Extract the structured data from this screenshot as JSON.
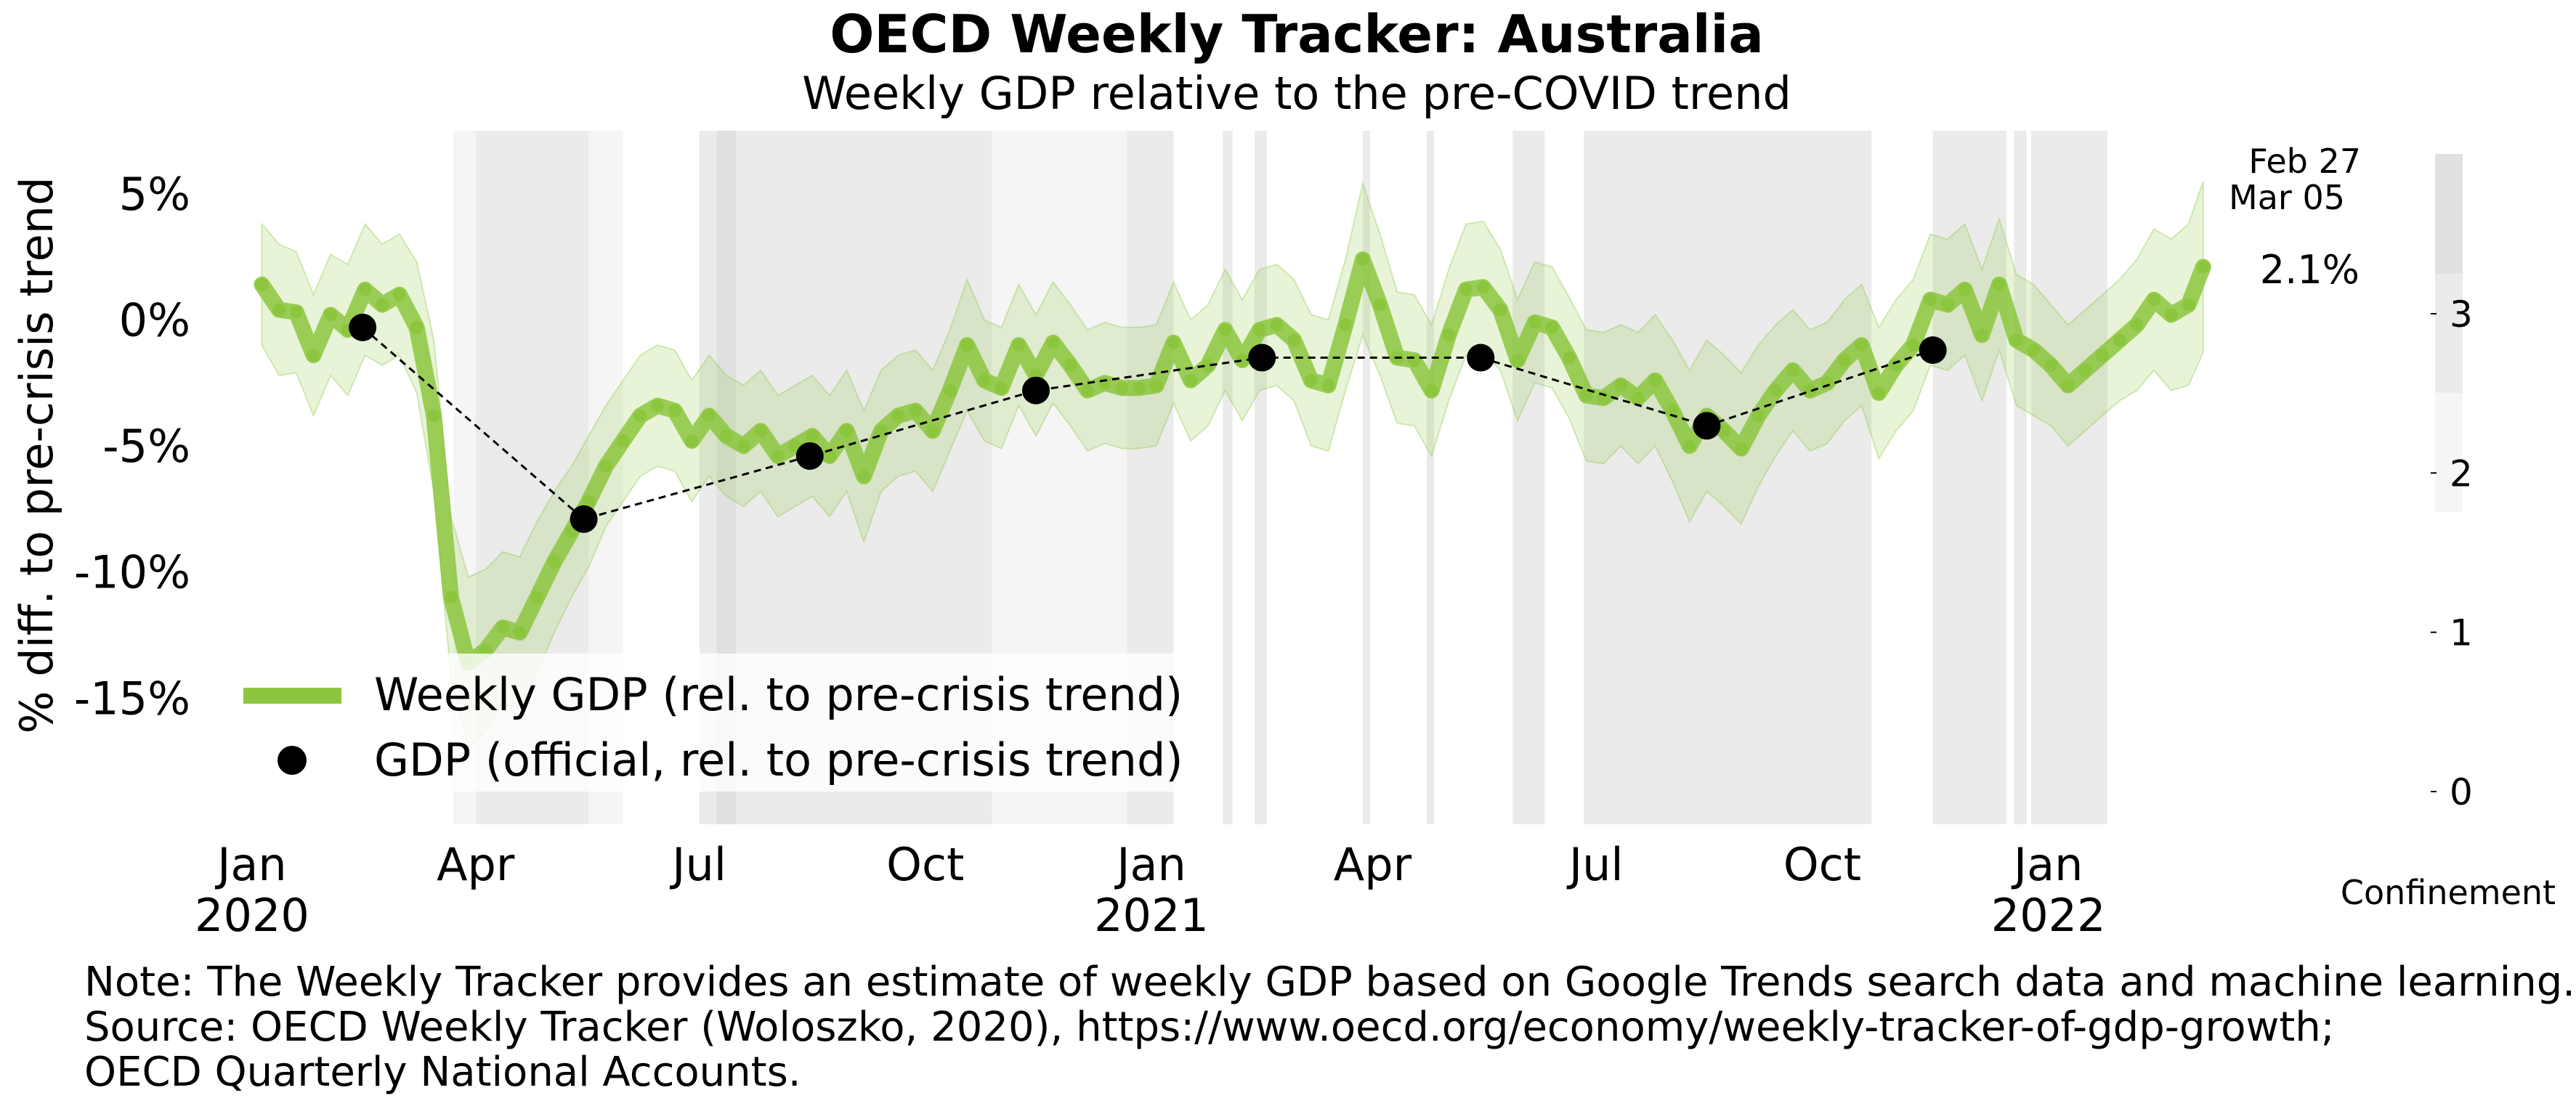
{
  "colors": {
    "weekly_line": "#8cc63e",
    "band": "#8cc63e",
    "official_dot": "#000000",
    "confinement_levels": [
      "#ffffff",
      "#f5f5f5",
      "#ebebeb",
      "#e0e0e0"
    ]
  },
  "chart_data": {
    "type": "line",
    "title": "OECD Weekly Tracker: Australia",
    "subtitle": "Weekly GDP relative to the pre-COVID trend",
    "ylabel": "% diff. to pre-crisis trend",
    "ylim": [
      -20,
      7.5
    ],
    "yticks": [
      5,
      0,
      -5,
      -10,
      -15
    ],
    "ytick_labels": [
      "5%",
      "0%",
      "-5%",
      "-10%",
      "-15%"
    ],
    "x_range": [
      "2019-12-27",
      "2022-03-16"
    ],
    "xticks": [
      {
        "date": "2020-01-01",
        "line1": "Jan",
        "line2": "2020"
      },
      {
        "date": "2020-04-01",
        "line1": "Apr",
        "line2": ""
      },
      {
        "date": "2020-07-01",
        "line1": "Jul",
        "line2": ""
      },
      {
        "date": "2020-10-01",
        "line1": "Oct",
        "line2": ""
      },
      {
        "date": "2021-01-01",
        "line1": "Jan",
        "line2": "2021"
      },
      {
        "date": "2021-04-01",
        "line1": "Apr",
        "line2": ""
      },
      {
        "date": "2021-07-01",
        "line1": "Jul",
        "line2": ""
      },
      {
        "date": "2021-10-01",
        "line1": "Oct",
        "line2": ""
      },
      {
        "date": "2022-01-01",
        "line1": "Jan",
        "line2": "2022"
      }
    ],
    "weekly_gdp": {
      "name": "Weekly GDP (rel. to pre-crisis trend)",
      "points": [
        [
          "2020-01-05",
          1.4
        ],
        [
          "2020-01-12",
          0.4
        ],
        [
          "2020-01-19",
          0.3
        ],
        [
          "2020-01-26",
          -1.4
        ],
        [
          "2020-02-02",
          0.2
        ],
        [
          "2020-02-09",
          -0.4
        ],
        [
          "2020-02-16",
          1.2
        ],
        [
          "2020-02-23",
          0.6
        ],
        [
          "2020-03-01",
          1.0
        ],
        [
          "2020-03-08",
          -0.3
        ],
        [
          "2020-03-15",
          -3.8
        ],
        [
          "2020-03-22",
          -11.0
        ],
        [
          "2020-03-29",
          -13.6
        ],
        [
          "2020-04-05",
          -13.1
        ],
        [
          "2020-04-12",
          -12.2
        ],
        [
          "2020-04-19",
          -12.4
        ],
        [
          "2020-04-26",
          -11.0
        ],
        [
          "2020-05-03",
          -9.6
        ],
        [
          "2020-05-10",
          -8.4
        ],
        [
          "2020-05-17",
          -7.2
        ],
        [
          "2020-05-24",
          -5.8
        ],
        [
          "2020-05-31",
          -4.8
        ],
        [
          "2020-06-07",
          -3.8
        ],
        [
          "2020-06-14",
          -3.4
        ],
        [
          "2020-06-21",
          -3.6
        ],
        [
          "2020-06-28",
          -4.8
        ],
        [
          "2020-07-05",
          -3.8
        ],
        [
          "2020-07-12",
          -4.6
        ],
        [
          "2020-07-19",
          -5.0
        ],
        [
          "2020-07-26",
          -4.4
        ],
        [
          "2020-08-02",
          -5.4
        ],
        [
          "2020-08-09",
          -5.0
        ],
        [
          "2020-08-16",
          -4.6
        ],
        [
          "2020-08-23",
          -5.4
        ],
        [
          "2020-08-30",
          -4.4
        ],
        [
          "2020-09-06",
          -6.2
        ],
        [
          "2020-09-13",
          -4.4
        ],
        [
          "2020-09-20",
          -3.8
        ],
        [
          "2020-09-27",
          -3.6
        ],
        [
          "2020-10-04",
          -4.4
        ],
        [
          "2020-10-11",
          -2.8
        ],
        [
          "2020-10-18",
          -1.0
        ],
        [
          "2020-10-25",
          -2.4
        ],
        [
          "2020-11-01",
          -2.7
        ],
        [
          "2020-11-08",
          -1.0
        ],
        [
          "2020-11-15",
          -2.2
        ],
        [
          "2020-11-22",
          -0.9
        ],
        [
          "2020-11-29",
          -1.8
        ],
        [
          "2020-12-06",
          -2.8
        ],
        [
          "2020-12-13",
          -2.5
        ],
        [
          "2020-12-20",
          -2.7
        ],
        [
          "2020-12-27",
          -2.7
        ],
        [
          "2021-01-03",
          -2.6
        ],
        [
          "2021-01-10",
          -0.9
        ],
        [
          "2021-01-17",
          -2.4
        ],
        [
          "2021-01-24",
          -1.8
        ],
        [
          "2021-01-31",
          -0.4
        ],
        [
          "2021-02-07",
          -1.6
        ],
        [
          "2021-02-14",
          -0.4
        ],
        [
          "2021-02-21",
          -0.2
        ],
        [
          "2021-02-28",
          -0.8
        ],
        [
          "2021-03-07",
          -2.4
        ],
        [
          "2021-03-14",
          -2.6
        ],
        [
          "2021-03-21",
          -0.2
        ],
        [
          "2021-03-28",
          2.4
        ],
        [
          "2021-04-04",
          0.6
        ],
        [
          "2021-04-11",
          -1.5
        ],
        [
          "2021-04-18",
          -1.6
        ],
        [
          "2021-04-25",
          -2.8
        ],
        [
          "2021-05-02",
          -0.6
        ],
        [
          "2021-05-09",
          1.2
        ],
        [
          "2021-05-16",
          1.3
        ],
        [
          "2021-05-23",
          0.4
        ],
        [
          "2021-05-30",
          -1.6
        ],
        [
          "2021-06-06",
          -0.1
        ],
        [
          "2021-06-13",
          -0.3
        ],
        [
          "2021-06-20",
          -1.5
        ],
        [
          "2021-06-27",
          -3.0
        ],
        [
          "2021-07-04",
          -3.1
        ],
        [
          "2021-07-11",
          -2.6
        ],
        [
          "2021-07-18",
          -3.1
        ],
        [
          "2021-07-25",
          -2.4
        ],
        [
          "2021-08-01",
          -3.6
        ],
        [
          "2021-08-08",
          -5.0
        ],
        [
          "2021-08-15",
          -3.8
        ],
        [
          "2021-08-22",
          -4.4
        ],
        [
          "2021-08-29",
          -5.1
        ],
        [
          "2021-09-05",
          -3.8
        ],
        [
          "2021-09-12",
          -2.8
        ],
        [
          "2021-09-19",
          -2.0
        ],
        [
          "2021-09-26",
          -2.8
        ],
        [
          "2021-10-03",
          -2.5
        ],
        [
          "2021-10-10",
          -1.6
        ],
        [
          "2021-10-17",
          -1.0
        ],
        [
          "2021-10-24",
          -2.9
        ],
        [
          "2021-10-31",
          -1.8
        ],
        [
          "2021-11-07",
          -1.0
        ],
        [
          "2021-11-14",
          0.8
        ],
        [
          "2021-11-21",
          0.6
        ],
        [
          "2021-11-28",
          1.2
        ],
        [
          "2021-12-05",
          -0.6
        ],
        [
          "2021-12-12",
          1.4
        ],
        [
          "2021-12-19",
          -0.8
        ],
        [
          "2021-12-26",
          -1.2
        ],
        [
          "2022-01-02",
          -1.8
        ],
        [
          "2022-01-09",
          -2.6
        ],
        [
          "2022-01-16",
          -2.0
        ],
        [
          "2022-01-23",
          -1.4
        ],
        [
          "2022-01-30",
          -0.8
        ],
        [
          "2022-02-06",
          -0.2
        ],
        [
          "2022-02-13",
          0.8
        ],
        [
          "2022-02-20",
          0.2
        ],
        [
          "2022-02-27",
          0.6
        ],
        [
          "2022-03-05",
          2.1
        ]
      ],
      "band_halfwidth": [
        2.4,
        2.6,
        2.4,
        2.4,
        2.4,
        2.6,
        2.6,
        2.4,
        2.4,
        2.6,
        3.0,
        3.2,
        3.4,
        3.2,
        3.0,
        3.0,
        3.0,
        2.8,
        2.6,
        2.6,
        2.4,
        2.4,
        2.4,
        2.4,
        2.4,
        2.4,
        2.4,
        2.4,
        2.4,
        2.4,
        2.4,
        2.4,
        2.4,
        2.4,
        2.4,
        2.6,
        2.4,
        2.4,
        2.4,
        2.4,
        2.4,
        2.6,
        2.4,
        2.4,
        2.4,
        2.4,
        2.4,
        2.4,
        2.4,
        2.4,
        2.4,
        2.4,
        2.4,
        2.4,
        2.4,
        2.4,
        2.4,
        2.4,
        2.4,
        2.4,
        2.4,
        2.6,
        2.6,
        2.6,
        3.0,
        2.8,
        2.6,
        2.6,
        2.6,
        2.6,
        2.6,
        2.6,
        2.4,
        2.4,
        2.4,
        2.4,
        2.4,
        2.6,
        2.6,
        2.4,
        2.6,
        2.6,
        2.8,
        3.0,
        3.0,
        3.0,
        3.0,
        2.8,
        2.6,
        2.4,
        2.4,
        2.4,
        2.4,
        2.4,
        2.6,
        2.6,
        2.6,
        2.6,
        2.6,
        2.6,
        2.6,
        2.6,
        2.6,
        2.6,
        2.4,
        2.4,
        2.4,
        2.4,
        2.4,
        2.6,
        2.8,
        3.0,
        3.2,
        3.4
      ]
    },
    "official_gdp": {
      "name": "GDP (official, rel. to pre-crisis trend)",
      "points": [
        [
          "2020-02-15",
          -0.3
        ],
        [
          "2020-05-15",
          -7.9
        ],
        [
          "2020-08-15",
          -5.4
        ],
        [
          "2020-11-15",
          -2.8
        ],
        [
          "2021-02-15",
          -1.5
        ],
        [
          "2021-05-15",
          -1.5
        ],
        [
          "2021-08-15",
          -4.2
        ],
        [
          "2021-11-15",
          -1.2
        ]
      ]
    },
    "confinement": {
      "label": "Confinement",
      "ticks": [
        3,
        2,
        1,
        0
      ],
      "levels": [
        {
          "value": 0
        },
        {
          "value": 1
        },
        {
          "value": 2
        },
        {
          "value": 3
        }
      ],
      "periods": [
        {
          "start": "2020-03-23",
          "end": "2020-04-01",
          "level": 1
        },
        {
          "start": "2020-04-01",
          "end": "2020-05-17",
          "level": 2
        },
        {
          "start": "2020-05-17",
          "end": "2020-05-31",
          "level": 1
        },
        {
          "start": "2020-07-01",
          "end": "2020-07-08",
          "level": 2
        },
        {
          "start": "2020-07-08",
          "end": "2020-07-16",
          "level": 3
        },
        {
          "start": "2020-07-16",
          "end": "2020-10-28",
          "level": 2
        },
        {
          "start": "2020-10-28",
          "end": "2020-12-22",
          "level": 1
        },
        {
          "start": "2020-12-22",
          "end": "2021-01-10",
          "level": 2
        },
        {
          "start": "2021-01-30",
          "end": "2021-02-03",
          "level": 2
        },
        {
          "start": "2021-02-12",
          "end": "2021-02-17",
          "level": 2
        },
        {
          "start": "2021-03-28",
          "end": "2021-03-31",
          "level": 2
        },
        {
          "start": "2021-04-23",
          "end": "2021-04-26",
          "level": 2
        },
        {
          "start": "2021-05-28",
          "end": "2021-06-10",
          "level": 2
        },
        {
          "start": "2021-06-26",
          "end": "2021-10-21",
          "level": 2
        },
        {
          "start": "2021-11-15",
          "end": "2021-12-15",
          "level": 2
        },
        {
          "start": "2021-12-18",
          "end": "2021-12-23",
          "level": 2
        },
        {
          "start": "2021-12-25",
          "end": "2022-01-25",
          "level": 2
        }
      ]
    },
    "annotations": {
      "date_line1": "Feb 27",
      "date_line2": "Mar 05",
      "last_value_label": "2.1%"
    },
    "legend": {
      "position": "lower-left",
      "entries": [
        {
          "label": "Weekly GDP (rel. to pre-crisis trend)"
        },
        {
          "label": "GDP (official, rel. to pre-crisis trend)"
        }
      ]
    },
    "grid": false
  },
  "note": {
    "line1": "Note: The Weekly Tracker provides an estimate of weekly GDP based on Google Trends search data and machine learning.",
    "line2": "Source: OECD Weekly Tracker (Woloszko, 2020), https://www.oecd.org/economy/weekly-tracker-of-gdp-growth;",
    "line3": "OECD Quarterly National Accounts."
  }
}
